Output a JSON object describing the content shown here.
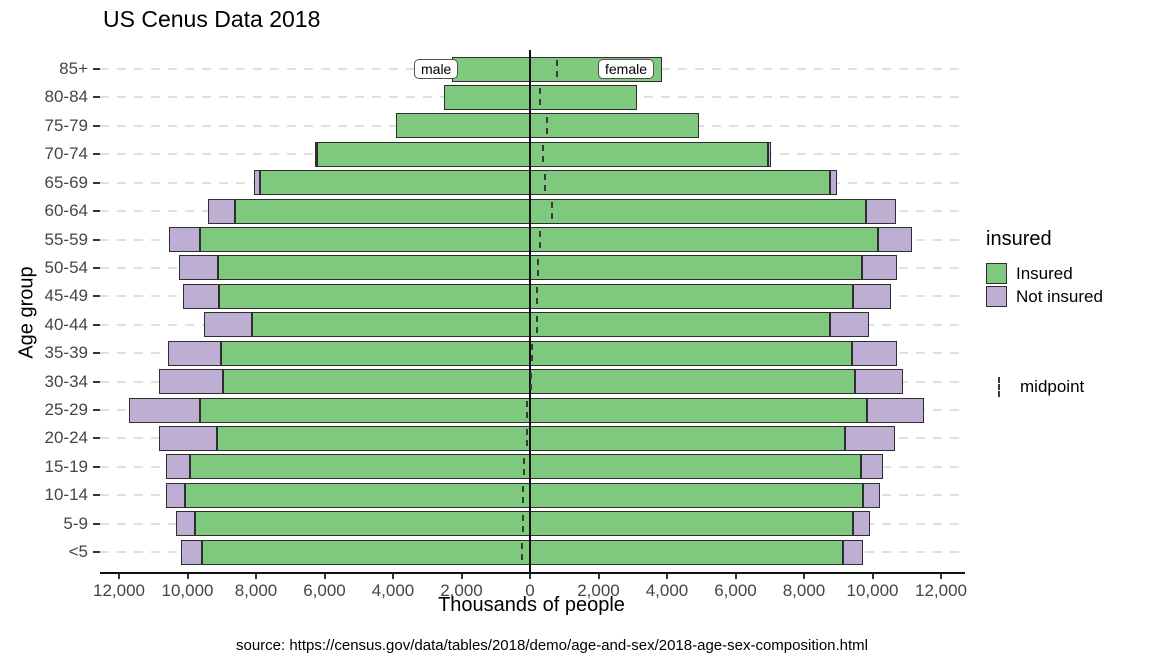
{
  "title": "US Cenus Data 2018",
  "axes": {
    "x_label": "Thousands of people",
    "y_label": "Age group"
  },
  "caption": "source: https://census.gov/data/tables/2018/demo/age-and-sex/2018-age-sex-composition.html",
  "annotations": {
    "male": "male",
    "female": "female"
  },
  "legend": {
    "title": "insured",
    "items": [
      {
        "label": "Insured",
        "color": "#7FC97F"
      },
      {
        "label": "Not insured",
        "color": "#BEAED4"
      }
    ],
    "midpoint": {
      "label": "midpoint"
    },
    "position": "right"
  },
  "colors": {
    "insured": "#7FC97F",
    "not_insured": "#BEAED4",
    "bar_border": "#2e2e2e",
    "axis_line": "#111111",
    "grid": "#e0e0e0",
    "tick_text": "#454545",
    "midpoint_mark": "#3a3a3a"
  },
  "chart_data": {
    "type": "bar",
    "subtype": "population-pyramid-stacked",
    "title": "US Cenus Data 2018",
    "xlabel": "Thousands of people",
    "ylabel": "Age group",
    "unit": "thousands of people",
    "grid": "dashed-horizontal",
    "legend_position": "right",
    "xlim": [
      -12000,
      12000
    ],
    "x_tick_values": [
      -12000,
      -10000,
      -8000,
      -6000,
      -4000,
      -2000,
      0,
      2000,
      4000,
      6000,
      8000,
      10000,
      12000
    ],
    "x_tick_labels": [
      "12,000",
      "10,000",
      "8,000",
      "6,000",
      "4,000",
      "2,000",
      "0",
      "2,000",
      "4,000",
      "6,000",
      "8,000",
      "10,000",
      "12,000"
    ],
    "categories_top_to_bottom": [
      "85+",
      "80-84",
      "75-79",
      "70-74",
      "65-69",
      "60-64",
      "55-59",
      "50-54",
      "45-49",
      "40-44",
      "35-39",
      "30-34",
      "25-29",
      "20-24",
      "15-19",
      "10-14",
      "5-9",
      "<5"
    ],
    "series": [
      {
        "name": "male Insured",
        "sex": "male",
        "side": "left",
        "insured": "Insured",
        "values": [
          2290,
          2510,
          3920,
          6210,
          7880,
          8620,
          9630,
          9100,
          9070,
          8120,
          9010,
          8970,
          9630,
          9140,
          9920,
          10080,
          9790,
          9590
        ]
      },
      {
        "name": "male Not insured",
        "sex": "male",
        "side": "left",
        "insured": "Not insured",
        "values": [
          0,
          0,
          0,
          70,
          180,
          790,
          900,
          1140,
          1070,
          1400,
          1570,
          1850,
          2070,
          1680,
          720,
          560,
          550,
          610
        ]
      },
      {
        "name": "female Insured",
        "sex": "female",
        "side": "right",
        "insured": "Insured",
        "values": [
          3850,
          3110,
          4940,
          6950,
          8760,
          9810,
          10170,
          9700,
          9430,
          8760,
          9410,
          9490,
          9840,
          9200,
          9660,
          9730,
          9440,
          9130
        ]
      },
      {
        "name": "female Not insured",
        "sex": "female",
        "side": "right",
        "insured": "Not insured",
        "values": [
          0,
          0,
          0,
          80,
          190,
          880,
          970,
          1010,
          1100,
          1140,
          1300,
          1390,
          1660,
          1460,
          640,
          490,
          490,
          600
        ]
      }
    ],
    "male_totals": [
      2290,
      2510,
      3920,
      6280,
      8060,
      9410,
      10530,
      10240,
      10140,
      9520,
      10580,
      10820,
      11700,
      10820,
      10640,
      10640,
      10340,
      10200
    ],
    "female_totals": [
      3850,
      3110,
      4940,
      7030,
      8950,
      10690,
      11140,
      10710,
      10530,
      9900,
      10710,
      10880,
      11500,
      10660,
      10300,
      10220,
      9930,
      9730
    ],
    "midpoint": [
      780,
      300,
      510,
      375,
      445,
      640,
      305,
      235,
      195,
      190,
      65,
      30,
      -100,
      -80,
      -170,
      -210,
      -205,
      -235
    ]
  }
}
